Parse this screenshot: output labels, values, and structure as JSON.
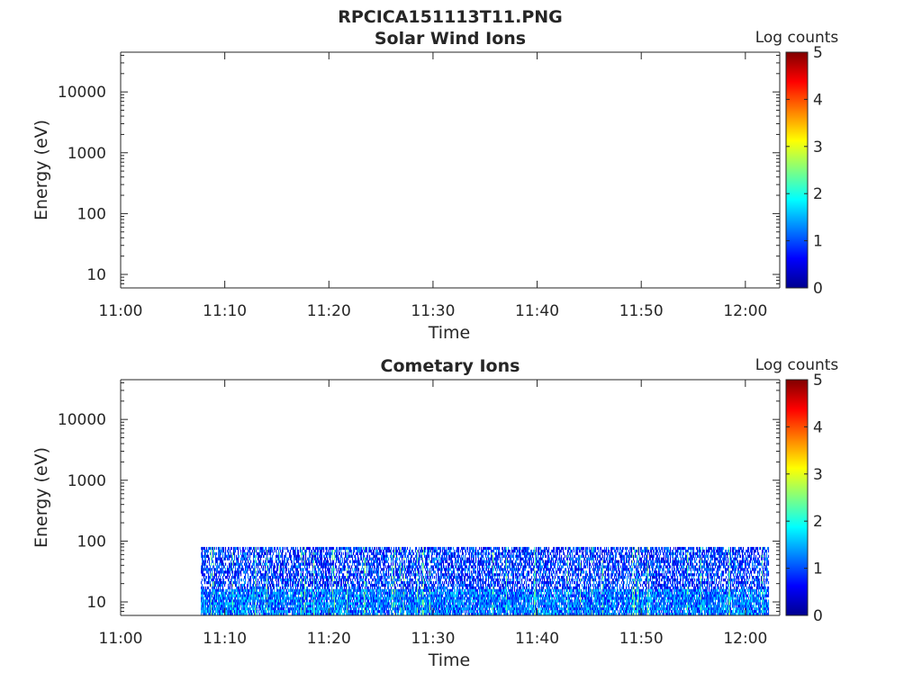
{
  "figure": {
    "title": "RPCICA151113T11.PNG"
  },
  "colormap": [
    "#00008f",
    "#0000ff",
    "#0080ff",
    "#00ffff",
    "#80ff80",
    "#ffff00",
    "#ff8000",
    "#ff0000",
    "#800000"
  ],
  "chart_data": [
    {
      "type": "heatmap",
      "title": "Solar Wind Ions",
      "xlabel": "Time",
      "ylabel": "Energy (eV)",
      "x_ticks": [
        "11:00",
        "11:10",
        "11:20",
        "11:30",
        "11:40",
        "11:50",
        "12:00"
      ],
      "xlim_minutes": [
        0,
        63.3
      ],
      "y_scale": "log",
      "y_ticks": [
        "10",
        "100",
        "1000",
        "10000"
      ],
      "ylim": [
        6,
        45000
      ],
      "colorbar": {
        "label": "Log counts",
        "ticks": [
          "0",
          "1",
          "2",
          "3",
          "4",
          "5"
        ],
        "range": [
          0,
          5
        ]
      },
      "data": "no data",
      "grid": false
    },
    {
      "type": "heatmap",
      "title": "Cometary Ions",
      "xlabel": "Time",
      "ylabel": "Energy (eV)",
      "x_ticks": [
        "11:00",
        "11:10",
        "11:20",
        "11:30",
        "11:40",
        "11:50",
        "12:00"
      ],
      "xlim_minutes": [
        0,
        63.3
      ],
      "y_scale": "log",
      "y_ticks": [
        "10",
        "100",
        "1000",
        "10000"
      ],
      "ylim": [
        6,
        45000
      ],
      "colorbar": {
        "label": "Log counts",
        "ticks": [
          "0",
          "1",
          "2",
          "3",
          "4",
          "5"
        ],
        "range": [
          0,
          5
        ]
      },
      "data_extent": {
        "time_start_minutes": 7.7,
        "time_end_minutes": 62.3,
        "energy_min_ev": 6,
        "energy_max_ev": 80
      },
      "typical_log_counts": [
        0.3,
        1.5
      ],
      "peak_log_counts": 2.7,
      "grid": false
    }
  ]
}
